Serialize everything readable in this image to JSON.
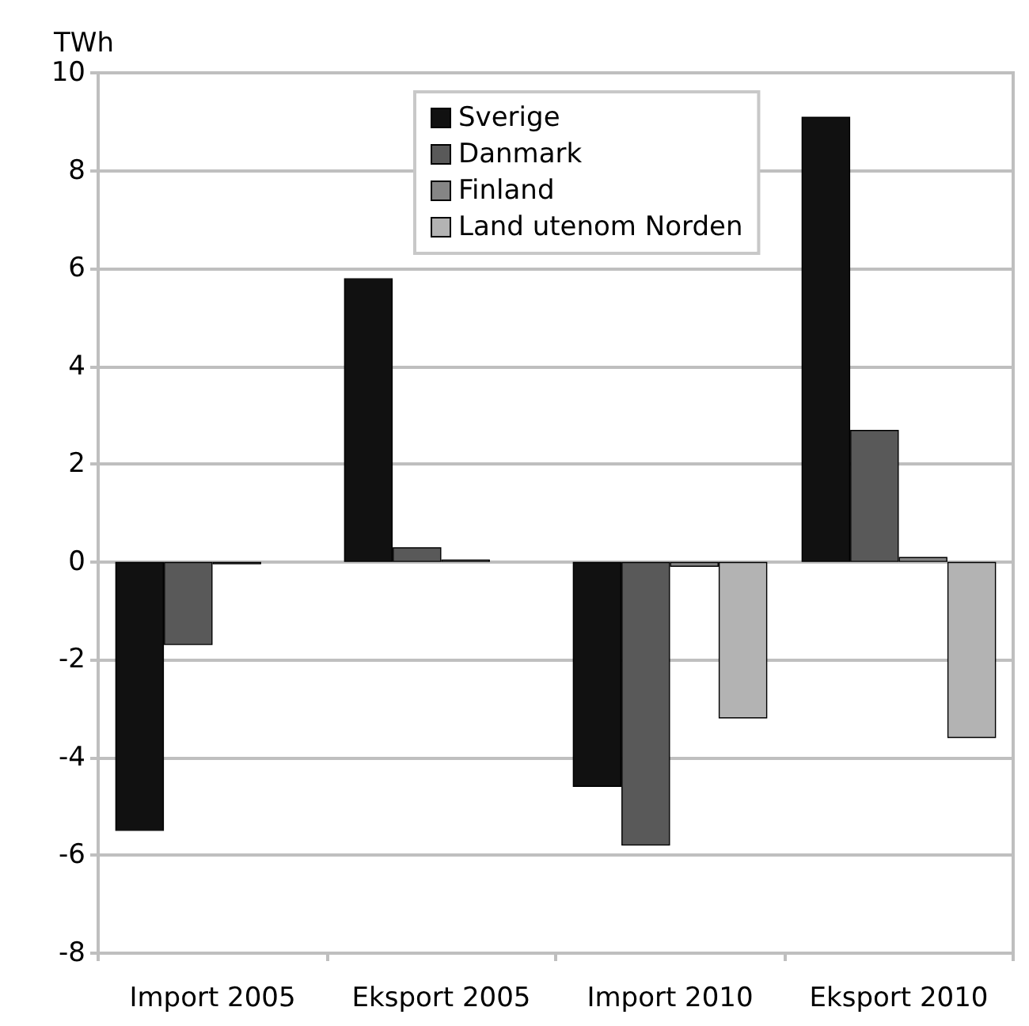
{
  "chart_data": {
    "type": "bar",
    "ylabel": "TWh",
    "categories": [
      "Import 2005",
      "Eksport 2005",
      "Import 2010",
      "Eksport 2010"
    ],
    "series": [
      {
        "name": "Sverige",
        "color": "#111111",
        "values": [
          -5.5,
          5.8,
          -4.6,
          9.1
        ]
      },
      {
        "name": "Danmark",
        "color": "#595959",
        "values": [
          -1.7,
          0.3,
          -5.8,
          2.7
        ]
      },
      {
        "name": "Finland",
        "color": "#858585",
        "values": [
          -0.05,
          0.05,
          -0.1,
          0.1
        ]
      },
      {
        "name": "Land utenom Norden",
        "color": "#b3b3b3",
        "values": [
          null,
          null,
          -3.2,
          -3.6
        ]
      }
    ],
    "ylim": [
      -8,
      10
    ],
    "yticks": [
      -8,
      -6,
      -4,
      -2,
      0,
      2,
      4,
      6,
      8,
      10
    ],
    "grid": "y",
    "legend": "top"
  }
}
